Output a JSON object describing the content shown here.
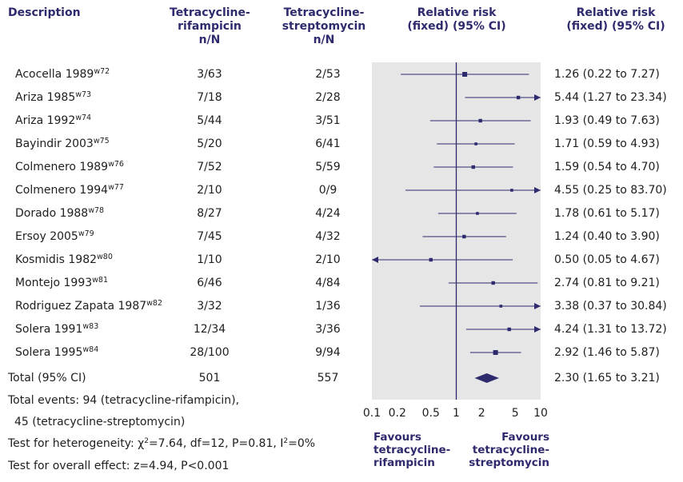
{
  "headers": {
    "description": "Description",
    "col1": [
      "Tetracycline-",
      "rifampicin",
      "n/N"
    ],
    "col2": [
      "Tetracycline-",
      "streptomycin",
      "n/N"
    ],
    "rr": [
      "Relative risk",
      "(fixed) (95% CI)"
    ],
    "rr2": [
      "Relative risk",
      "(fixed) (95% CI)"
    ]
  },
  "studies": [
    {
      "name": "Acocella 1989",
      "ref": "w72",
      "rif": "3/63",
      "strep": "2/53",
      "rr_text": "1.26 (0.22 to 7.27)"
    },
    {
      "name": "Ariza 1985",
      "ref": "w73",
      "rif": "7/18",
      "strep": "2/28",
      "rr_text": "5.44 (1.27 to 23.34)"
    },
    {
      "name": "Ariza 1992",
      "ref": "w74",
      "rif": "5/44",
      "strep": "3/51",
      "rr_text": "1.93 (0.49 to 7.63)"
    },
    {
      "name": "Bayindir 2003",
      "ref": "w75",
      "rif": "5/20",
      "strep": "6/41",
      "rr_text": "1.71 (0.59 to 4.93)"
    },
    {
      "name": "Colmenero 1989",
      "ref": "w76",
      "rif": "7/52",
      "strep": "5/59",
      "rr_text": "1.59 (0.54 to 4.70)"
    },
    {
      "name": "Colmenero 1994",
      "ref": "w77",
      "rif": "2/10",
      "strep": "0/9",
      "rr_text": "4.55 (0.25 to 83.70)"
    },
    {
      "name": "Dorado 1988",
      "ref": "w78",
      "rif": "8/27",
      "strep": "4/24",
      "rr_text": "1.78 (0.61 to 5.17)"
    },
    {
      "name": "Ersoy 2005",
      "ref": "w79",
      "rif": "7/45",
      "strep": "4/32",
      "rr_text": "1.24 (0.40 to 3.90)"
    },
    {
      "name": "Kosmidis 1982",
      "ref": "w80",
      "rif": "1/10",
      "strep": "2/10",
      "rr_text": "0.50 (0.05 to 4.67)"
    },
    {
      "name": "Montejo 1993",
      "ref": "w81",
      "rif": "6/46",
      "strep": "4/84",
      "rr_text": "2.74 (0.81 to 9.21)"
    },
    {
      "name": "Rodriguez Zapata 1987",
      "ref": "w82",
      "rif": "3/32",
      "strep": "1/36",
      "rr_text": "3.38 (0.37 to 30.84)"
    },
    {
      "name": "Solera 1991",
      "ref": "w83",
      "rif": "12/34",
      "strep": "3/36",
      "rr_text": "4.24 (1.31 to 13.72)"
    },
    {
      "name": "Solera 1995",
      "ref": "w84",
      "rif": "28/100",
      "strep": "9/94",
      "rr_text": "2.92 (1.46 to 5.87)"
    }
  ],
  "total": {
    "label": "Total (95% CI)",
    "rif": "501",
    "strep": "557",
    "rr_text": "2.30 (1.65 to 3.21)"
  },
  "footer": {
    "events_line1": "Total events: 94 (tetracycline-rifampicin),",
    "events_line2": "45 (tetracycline-streptomycin)",
    "het_prefix": "Test for heterogeneity: χ",
    "het_sup1": "2",
    "het_mid": "=7.64, df=12, P=0.81, I",
    "het_sup2": "2",
    "het_suffix": "=0%",
    "overall": "Test for overall effect: z=4.94, P<0.001"
  },
  "favours_left": [
    "Favours",
    "tetracycline-",
    "rifampicin"
  ],
  "favours_right": [
    "Favours",
    "tetracycline-",
    "streptomycin"
  ],
  "colors": {
    "plot_bg": "#e6e6e6",
    "mark": "#2e2a6e",
    "header_text": "#2e2a6e"
  },
  "chart_data": {
    "type": "forest",
    "scale": "log",
    "xlim": [
      0.1,
      10
    ],
    "null_line": 1,
    "x_ticks": [
      0.1,
      0.2,
      0.5,
      1,
      2,
      5,
      10
    ],
    "x_tick_labels": [
      "0.1",
      "0.2",
      "0.5",
      "1",
      "2",
      "5",
      "10"
    ],
    "studies": [
      {
        "rr": 1.26,
        "lo": 0.22,
        "hi": 7.27,
        "weight": 3
      },
      {
        "rr": 5.44,
        "lo": 1.27,
        "hi": 23.34,
        "weight": 2.2
      },
      {
        "rr": 1.93,
        "lo": 0.49,
        "hi": 7.63,
        "weight": 2.2
      },
      {
        "rr": 1.71,
        "lo": 0.59,
        "hi": 4.93,
        "weight": 1.8
      },
      {
        "rr": 1.59,
        "lo": 0.54,
        "hi": 4.7,
        "weight": 2.2
      },
      {
        "rr": 4.55,
        "lo": 0.25,
        "hi": 83.7,
        "weight": 1.8
      },
      {
        "rr": 1.78,
        "lo": 0.61,
        "hi": 5.17,
        "weight": 1.8
      },
      {
        "rr": 1.24,
        "lo": 0.4,
        "hi": 3.9,
        "weight": 2.2
      },
      {
        "rr": 0.5,
        "lo": 0.05,
        "hi": 4.67,
        "weight": 2.2
      },
      {
        "rr": 2.74,
        "lo": 0.81,
        "hi": 9.21,
        "weight": 2.2
      },
      {
        "rr": 3.38,
        "lo": 0.37,
        "hi": 30.84,
        "weight": 1.8
      },
      {
        "rr": 4.24,
        "lo": 1.31,
        "hi": 13.72,
        "weight": 2.2
      },
      {
        "rr": 2.92,
        "lo": 1.46,
        "hi": 5.87,
        "weight": 3
      }
    ],
    "total": {
      "rr": 2.3,
      "lo": 1.65,
      "hi": 3.21
    }
  }
}
